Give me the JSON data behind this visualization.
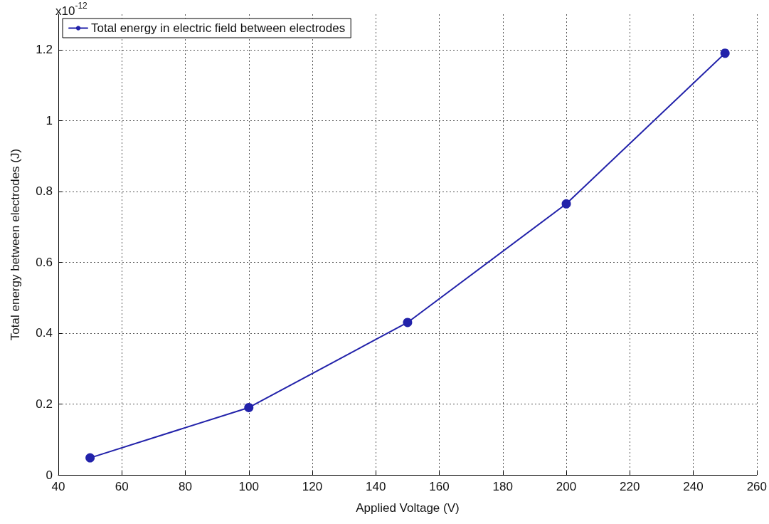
{
  "chart_data": {
    "type": "line",
    "xlabel": "Applied Voltage (V)",
    "ylabel": "Total energy between electrodes (J)",
    "annotations": [
      "x10$^{-12}$"
    ],
    "x": [
      50,
      100,
      150,
      200,
      250
    ],
    "series": [
      {
        "name": "Total energy in electric field between electrodes",
        "color": "#2222aa",
        "values": [
          0.048,
          0.19,
          0.43,
          0.765,
          1.19
        ]
      }
    ],
    "xlim": [
      40,
      260
    ],
    "xticks": [
      40,
      60,
      80,
      100,
      120,
      140,
      160,
      180,
      200,
      220,
      240,
      260
    ],
    "ylim": [
      0,
      1.3
    ],
    "yticks": [
      0,
      0.2,
      0.4,
      0.6,
      0.8,
      1,
      1.2
    ],
    "grid": true,
    "legend": "top left",
    "marker": "circle",
    "line_style": "solid"
  }
}
